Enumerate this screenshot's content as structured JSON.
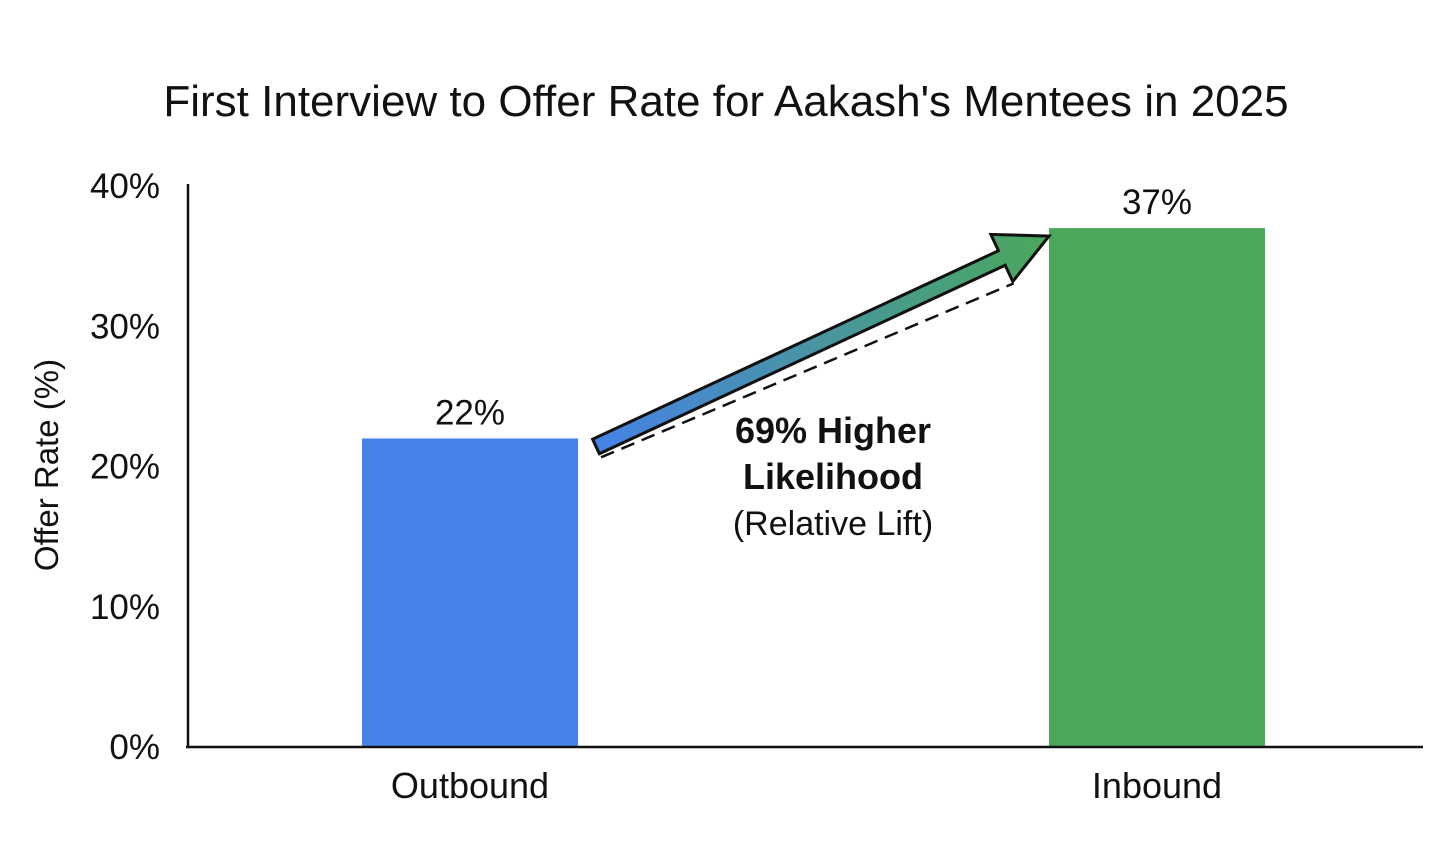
{
  "chart_data": {
    "type": "bar",
    "title": "First Interview to Offer Rate for Aakash's Mentees in 2025",
    "xlabel": "",
    "ylabel": "Offer Rate (%)",
    "ylim": [
      0,
      40
    ],
    "yticks": [
      0,
      10,
      20,
      30,
      40
    ],
    "ytick_labels": [
      "0%",
      "10%",
      "20%",
      "30%",
      "40%"
    ],
    "categories": [
      "Outbound",
      "Inbound"
    ],
    "values": [
      22,
      37
    ],
    "data_labels": [
      "22%",
      "37%"
    ],
    "colors": [
      "#4682e8",
      "#4aa85a"
    ],
    "grid": false,
    "legend": "none",
    "annotation": {
      "line1": "69% Higher",
      "line2": "Likelihood",
      "line3": "(Relative Lift)",
      "arrow_from": "Outbound",
      "arrow_to": "Inbound",
      "arrow_colors": [
        "#4682e8",
        "#4aa85a"
      ]
    }
  }
}
